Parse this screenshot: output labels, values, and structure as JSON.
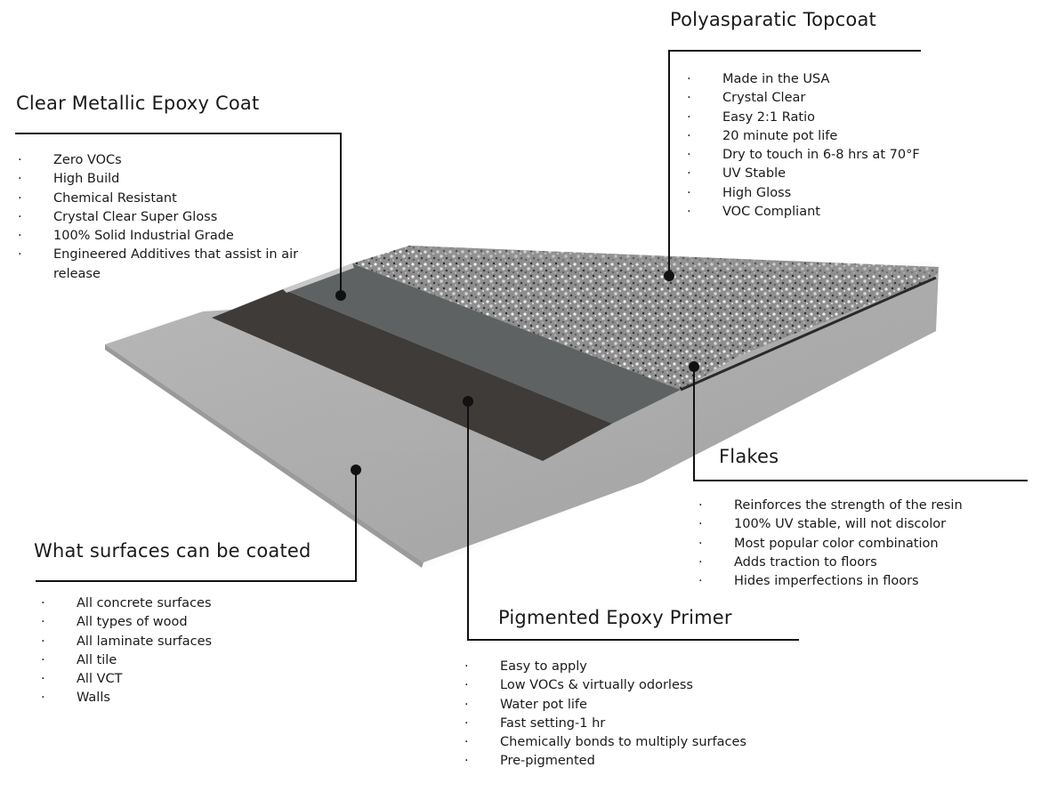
{
  "sections": {
    "topcoat": {
      "title": "Polyasparatic Topcoat",
      "items": [
        "Made in the USA",
        "Crystal Clear",
        "Easy 2:1 Ratio",
        "20 minute pot life",
        "Dry to touch in 6-8 hrs at 70°F",
        "UV Stable",
        "High Gloss",
        "VOC Compliant"
      ]
    },
    "metallic": {
      "title": "Clear Metallic Epoxy Coat",
      "items": [
        "Zero VOCs",
        "High Build",
        "Chemical Resistant",
        "Crystal Clear Super Gloss",
        "100% Solid Industrial Grade",
        "Engineered Additives that assist in air release"
      ]
    },
    "flakes": {
      "title": "Flakes",
      "items": [
        "Reinforces the strength of the resin",
        "100% UV stable, will not discolor",
        "Most popular color combination",
        "Adds traction to floors",
        "Hides imperfections in floors"
      ]
    },
    "surfaces": {
      "title": "What surfaces can be coated",
      "items": [
        "All concrete surfaces",
        "All types of wood",
        "All laminate surfaces",
        "All tile",
        "All VCT",
        "Walls"
      ]
    },
    "primer": {
      "title": "Pigmented Epoxy Primer",
      "items": [
        "Easy to apply",
        "Low VOCs & virtually odorless",
        "Water pot life",
        "Fast setting-1 hr",
        "Chemically bonds to multiply surfaces",
        "Pre-pigmented"
      ]
    }
  },
  "bullet": "·",
  "colors": {
    "concrete": "#a9a9a9",
    "primer": "#3d3a38",
    "metallic": "#5c6060",
    "flakes": "#8c8c8c",
    "leader": "#111111"
  }
}
